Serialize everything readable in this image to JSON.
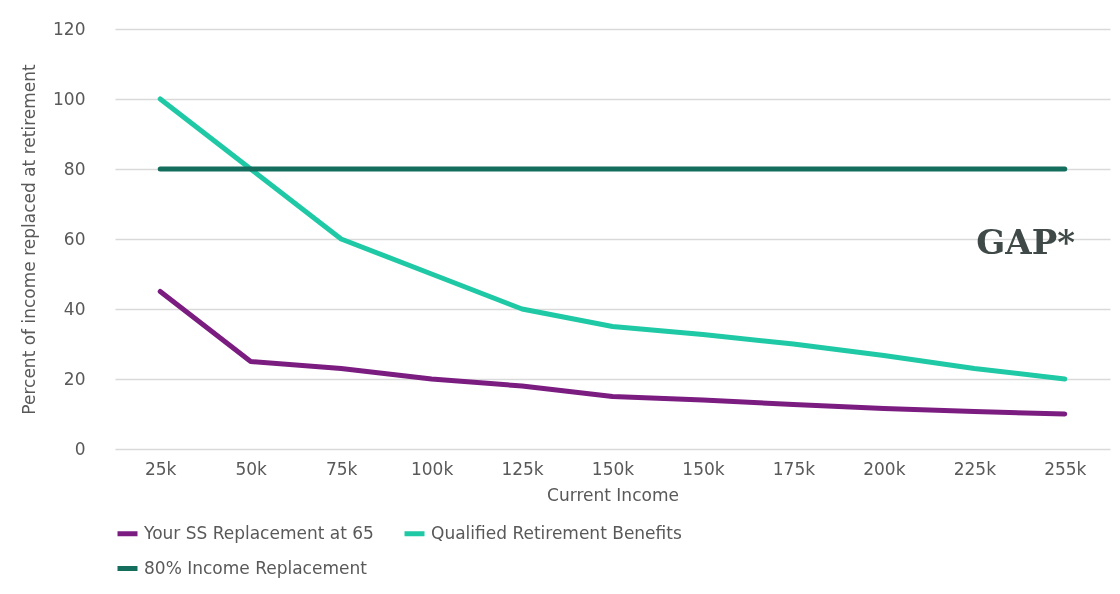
{
  "chart_data": {
    "type": "line",
    "xlabel": "Current Income",
    "ylabel": "Percent of income replaced at retirement",
    "categories": [
      "25k",
      "50k",
      "75k",
      "100k",
      "125k",
      "150k",
      "150k",
      "175k",
      "200k",
      "225k",
      "255k"
    ],
    "series": [
      {
        "name": "Your SS Replacement at 65",
        "color": "#7b1c80",
        "values": [
          45,
          25,
          23,
          20,
          18,
          15,
          14,
          12.7,
          11.6,
          10.7,
          10
        ]
      },
      {
        "name": "Qualified Retirement Benefits",
        "color": "#1fc9a5",
        "values": [
          100,
          80,
          60,
          50,
          40,
          35,
          32.7,
          30,
          26.7,
          23,
          20
        ]
      },
      {
        "name": "80% Income Replacement",
        "color": "#136e5e",
        "values": [
          80,
          80,
          80,
          80,
          80,
          80,
          80,
          80,
          80,
          80,
          80
        ]
      }
    ],
    "ylim": [
      0,
      120
    ],
    "yticks": [
      0,
      20,
      40,
      60,
      80,
      100,
      120
    ],
    "grid": "y",
    "legend": "bottom",
    "line_style": "solid",
    "marker": "none",
    "annotations": [
      "GAP*"
    ]
  }
}
